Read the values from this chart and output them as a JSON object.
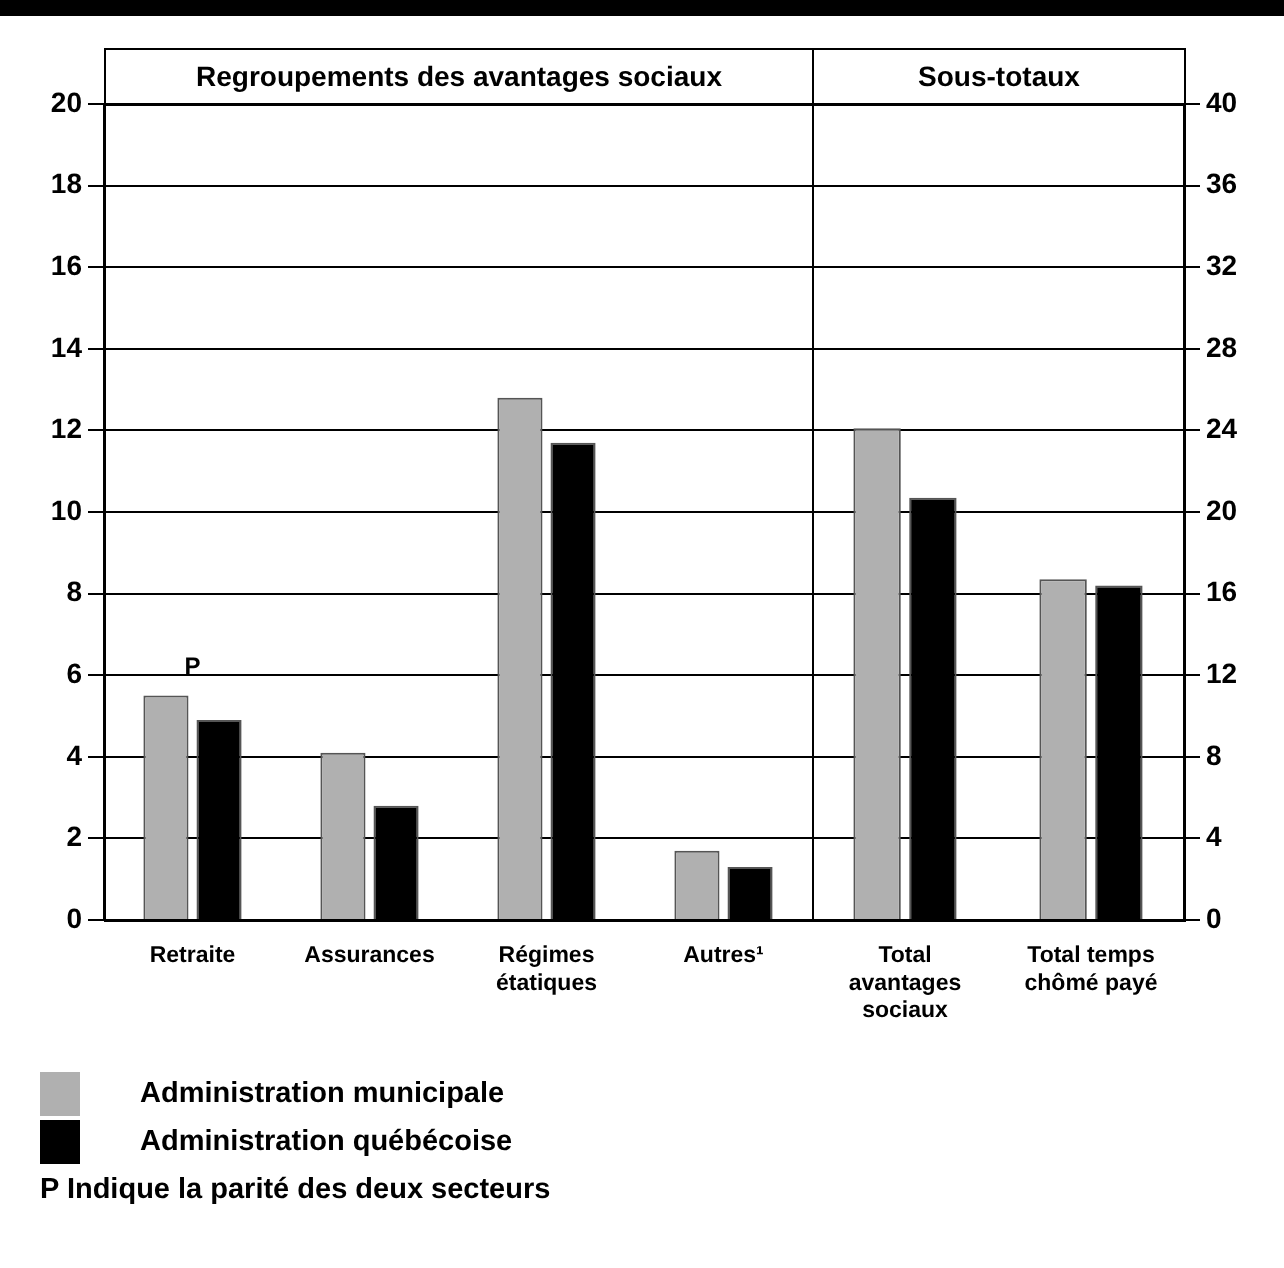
{
  "chart_data": [
    {
      "type": "bar",
      "title": "Regroupements des avantages sociaux",
      "categories": [
        "Retraite",
        "Assurances",
        "Régimes étatiques",
        "Autres¹"
      ],
      "series": [
        {
          "name": "Administration municipale",
          "color": "#b0b0b0",
          "values": [
            5.5,
            4.1,
            12.8,
            1.7
          ]
        },
        {
          "name": "Administration québécoise",
          "color": "#000000",
          "values": [
            4.9,
            2.8,
            11.7,
            1.3
          ]
        }
      ],
      "ylim": [
        0,
        20
      ],
      "yticks": [
        0,
        2,
        4,
        6,
        8,
        10,
        12,
        14,
        16,
        18,
        20
      ],
      "grid": "y",
      "legend": "bottom",
      "annotations": [
        {
          "text": "P",
          "x": "Retraite",
          "y": 5.5
        },
        "P Indique la parité des deux secteurs"
      ]
    },
    {
      "type": "bar",
      "title": "Sous-totaux",
      "categories": [
        "Total avantages sociaux",
        "Total temps chômé payé"
      ],
      "series": [
        {
          "color": "#b0b0b0",
          "values": [
            24.1,
            16.7
          ],
          "axis": "y2"
        },
        {
          "color": "#000000",
          "values": [
            20.7,
            16.4
          ],
          "axis": "y2"
        }
      ],
      "y2lim": [
        0,
        40
      ],
      "y2ticks": [
        0,
        4,
        8,
        12,
        16,
        20,
        24,
        28,
        32,
        36,
        40
      ],
      "grid": "y"
    }
  ]
}
